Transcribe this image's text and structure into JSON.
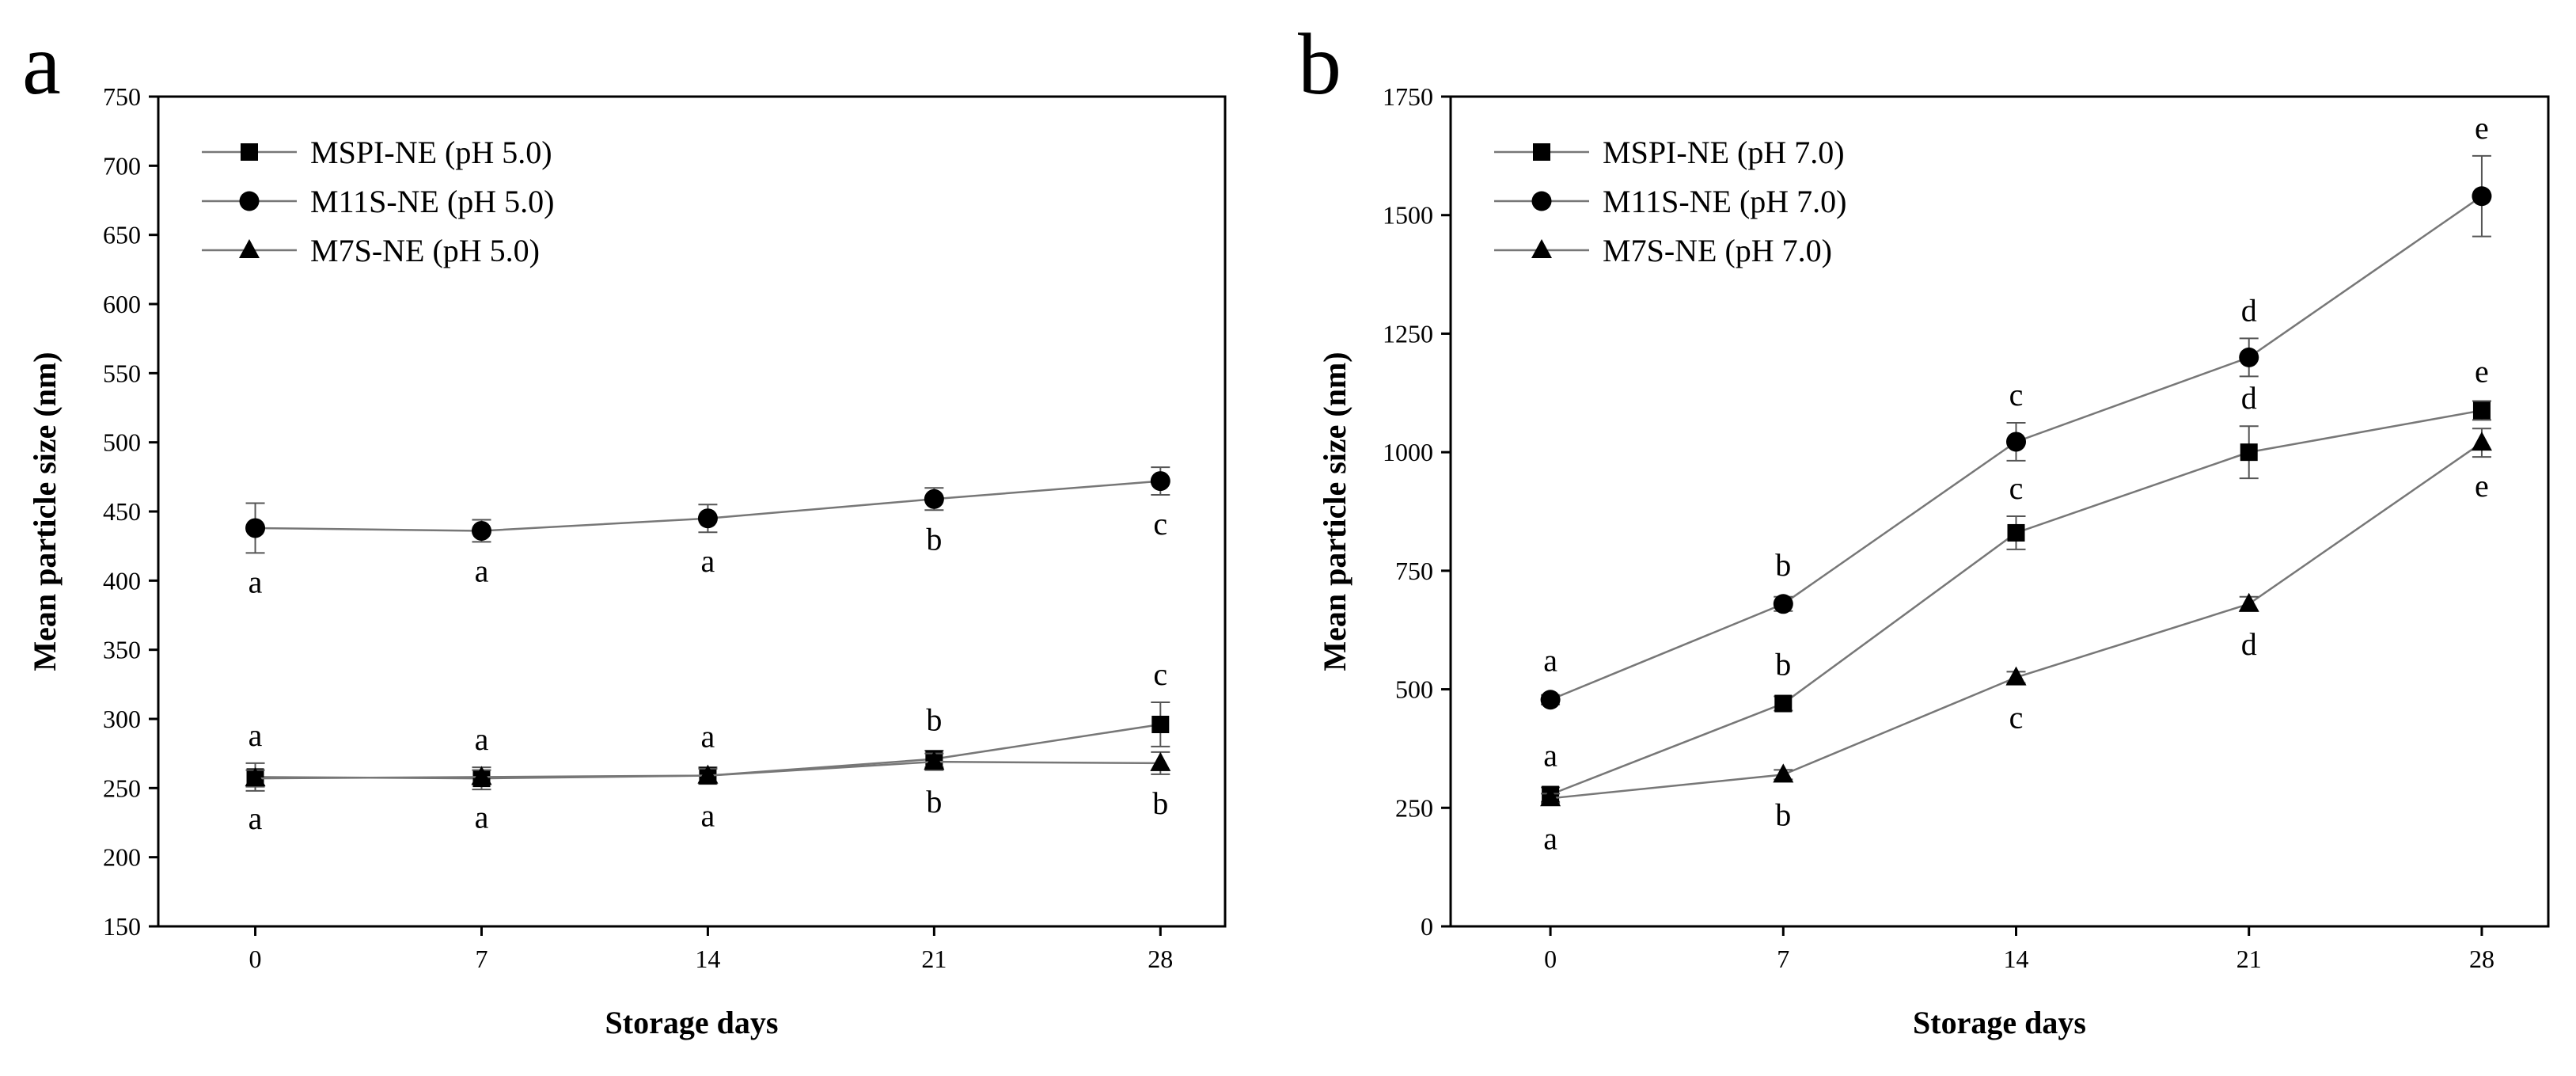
{
  "chart_data": [
    {
      "panel": "a",
      "type": "line",
      "xlabel": "Storage days",
      "ylabel": "Mean particle size (nm)",
      "x": [
        0,
        7,
        14,
        21,
        28
      ],
      "xticks": [
        "0",
        "7",
        "14",
        "21",
        "28"
      ],
      "xlim": [
        -3,
        30
      ],
      "ylim": [
        150,
        750
      ],
      "yticks": [
        "150",
        "200",
        "250",
        "300",
        "350",
        "400",
        "450",
        "500",
        "550",
        "600",
        "650",
        "700",
        "750"
      ],
      "legend_position": "top-left",
      "series": [
        {
          "name": "MSPI-NE (pH 5.0)",
          "marker": "square",
          "values": [
            258,
            257,
            259,
            271,
            296
          ],
          "errors": [
            10,
            8,
            6,
            6,
            16
          ],
          "labels": [
            "a",
            "a",
            "a",
            "b",
            "c"
          ],
          "label_side": "above"
        },
        {
          "name": "M11S-NE (pH 5.0)",
          "marker": "circle",
          "values": [
            438,
            436,
            445,
            459,
            472
          ],
          "errors": [
            18,
            8,
            10,
            8,
            10
          ],
          "labels": [
            "a",
            "a",
            "a",
            "b",
            "c"
          ],
          "label_side": "below"
        },
        {
          "name": "M7S-NE (pH 5.0)",
          "marker": "triangle",
          "values": [
            257,
            258,
            259,
            269,
            268
          ],
          "errors": [
            6,
            5,
            5,
            6,
            8
          ],
          "labels": [
            "a",
            "a",
            "a",
            "b",
            "b"
          ],
          "label_side": "below"
        }
      ]
    },
    {
      "panel": "b",
      "type": "line",
      "xlabel": "Storage days",
      "ylabel": "Mean particle size (nm)",
      "x": [
        0,
        7,
        14,
        21,
        28
      ],
      "xticks": [
        "0",
        "7",
        "14",
        "21",
        "28"
      ],
      "xlim": [
        -3,
        30
      ],
      "ylim": [
        0,
        1750
      ],
      "yticks": [
        "0",
        "250",
        "500",
        "750",
        "1000",
        "1250",
        "1500",
        "1750"
      ],
      "legend_position": "top-left",
      "series": [
        {
          "name": "MSPI-NE (pH 7.0)",
          "marker": "square",
          "values": [
            278,
            470,
            830,
            1000,
            1088
          ],
          "errors": [
            15,
            15,
            35,
            55,
            20
          ],
          "labels": [
            "a",
            "b",
            "c",
            "d",
            "e"
          ],
          "label_side": "above"
        },
        {
          "name": "M11S-NE (pH 7.0)",
          "marker": "circle",
          "values": [
            478,
            680,
            1022,
            1200,
            1540
          ],
          "errors": [
            10,
            15,
            40,
            40,
            85
          ],
          "labels": [
            "a",
            "b",
            "c",
            "d",
            "e"
          ],
          "label_side": "above"
        },
        {
          "name": "M7S-NE (pH 7.0)",
          "marker": "triangle",
          "values": [
            270,
            320,
            525,
            680,
            1020
          ],
          "errors": [
            10,
            10,
            12,
            15,
            30
          ],
          "labels": [
            "a",
            "b",
            "c",
            "d",
            "e"
          ],
          "label_side": "below"
        }
      ]
    }
  ]
}
